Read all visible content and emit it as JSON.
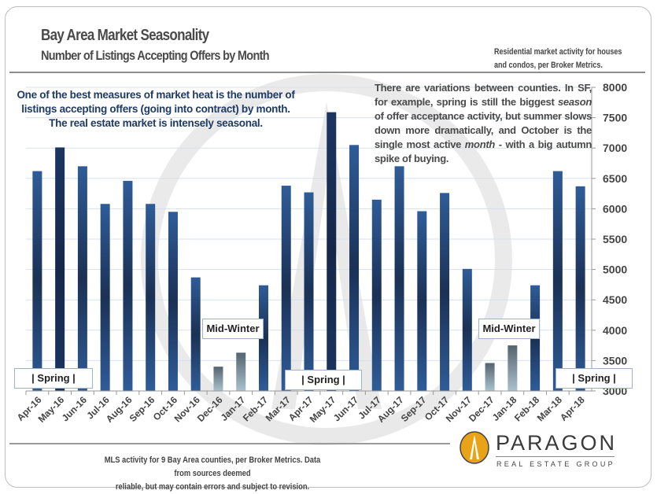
{
  "header": {
    "title": "Bay Area Market Seasonality",
    "subtitle": "Number of Listings Accepting Offers by Month",
    "note_line1": "Residential market activity for houses",
    "note_line2": "and condos, per Broker Metrics."
  },
  "annotations": {
    "left": "One of the best measures of market heat is the number of listings accepting offers (going into contract) by month. The real estate market is intensely seasonal.",
    "right_part1": "There are variations between counties. In SF, for example, spring is still the biggest ",
    "right_em1": "season",
    "right_part2": " of offer acceptance activity, but summer slows down more dramatically, and October is the single most active ",
    "right_em2": "month",
    "right_part3": " - with a big autumn spike of buying.",
    "spring_label": "|   Spring   |",
    "midwinter_label": "Mid-Winter"
  },
  "footer": {
    "line1": "MLS activity for 9 Bay Area counties, per Broker Metrics. Data from sources deemed",
    "line2": "reliable, but may contain errors and subject to revision."
  },
  "logo": {
    "name": "PARAGON",
    "tagline": "REAL ESTATE GROUP"
  },
  "colors": {
    "bar": "#2c5894",
    "bar_dark": "#1b3155",
    "bar_peak": "#1a3358",
    "winter_top": "#55646e",
    "winter_bottom": "#aac2ce",
    "logo_gold": "#e8a317"
  },
  "chart_data": {
    "type": "bar",
    "title": "Number of Listings Accepting Offers by Month",
    "xlabel": "",
    "ylabel": "",
    "ylim": [
      3000,
      8000
    ],
    "yticks": [
      3000,
      3500,
      4000,
      4500,
      5000,
      5500,
      6000,
      6500,
      7000,
      7500,
      8000
    ],
    "y_axis_position": "right",
    "grid": true,
    "categories": [
      "Apr-16",
      "May-16",
      "Jun-16",
      "Jul-16",
      "Aug-16",
      "Sep-16",
      "Oct-16",
      "Nov-16",
      "Dec-16",
      "Jan-17",
      "Feb-17",
      "Mar-17",
      "Apr-17",
      "May-17",
      "Jun-17",
      "Jul-17",
      "Aug-17",
      "Sep-17",
      "Oct-17",
      "Nov-17",
      "Dec-17",
      "Jan-18",
      "Feb-18",
      "Mar-18",
      "Apr-18"
    ],
    "values": [
      6620,
      7010,
      6700,
      6080,
      6460,
      6080,
      5950,
      4870,
      3400,
      3630,
      4740,
      6380,
      6270,
      7590,
      7050,
      6150,
      6700,
      5960,
      6260,
      5010,
      3460,
      3750,
      4740,
      6620,
      6370
    ],
    "highlight": [
      "normal",
      "peak",
      "normal",
      "normal",
      "normal",
      "normal",
      "normal",
      "normal",
      "winter",
      "winter",
      "normal",
      "normal",
      "normal",
      "peak",
      "normal",
      "normal",
      "normal",
      "normal",
      "normal",
      "normal",
      "winter",
      "winter",
      "normal",
      "normal",
      "normal"
    ]
  }
}
